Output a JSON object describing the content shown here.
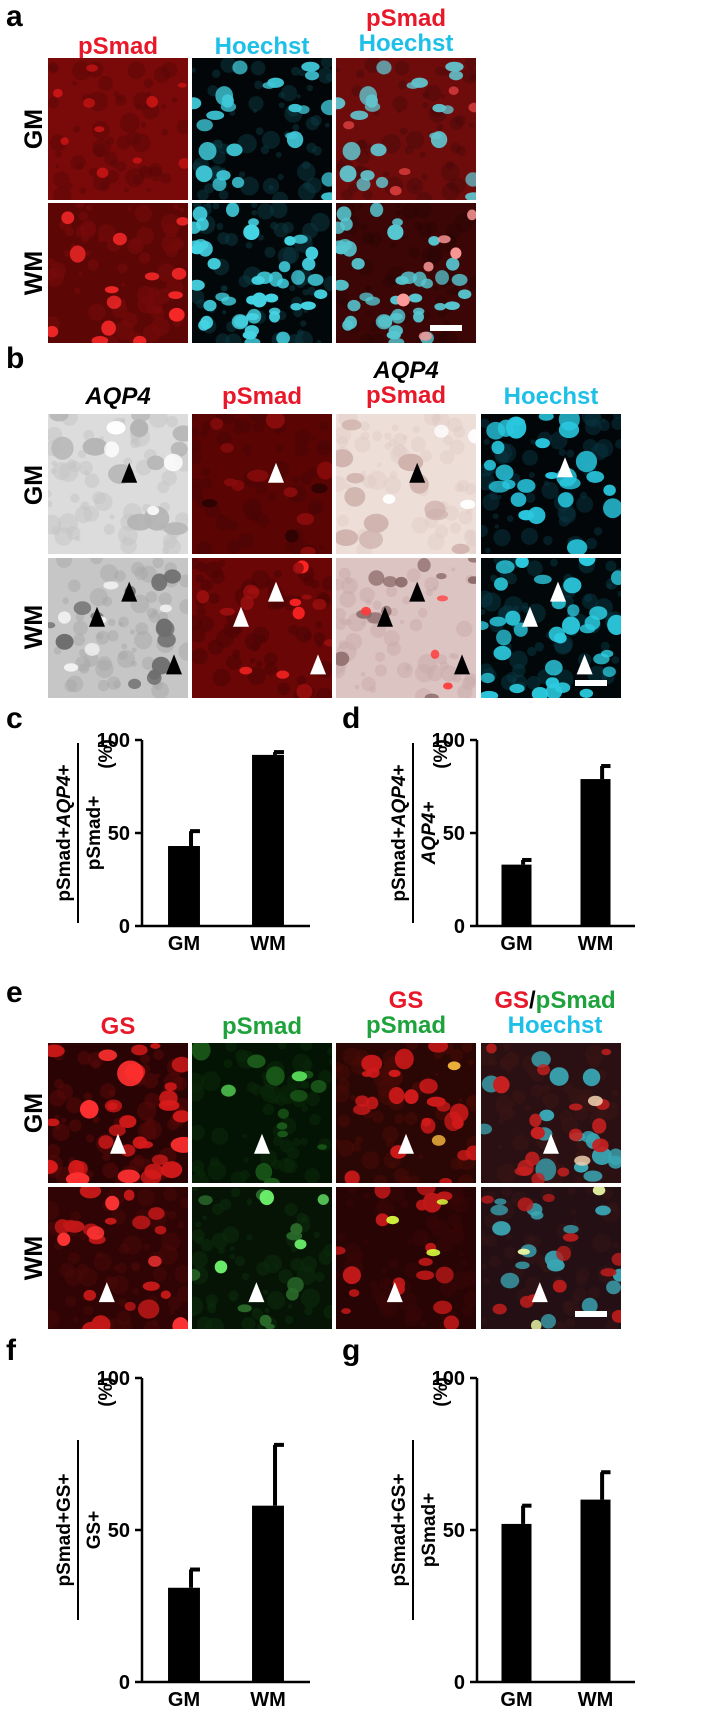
{
  "panel_a": {
    "letter": "a",
    "columns": [
      "pSmad",
      "Hoechst",
      "pSmad",
      "Hoechst"
    ],
    "rows": [
      "GM",
      "WM"
    ]
  },
  "panel_b": {
    "letter": "b",
    "col1": "AQP4",
    "col2": "pSmad",
    "col3_top": "AQP4",
    "col3_bottom": "pSmad",
    "col4": "Hoechst",
    "rows": [
      "GM",
      "WM"
    ]
  },
  "panel_e": {
    "letter": "e",
    "col1": "GS",
    "col2": "pSmad",
    "col3_top": "GS",
    "col3_bottom": "pSmad",
    "col4_top_gs": "GS",
    "col4_top_slash": "/",
    "col4_top_psmad": "pSmad",
    "col4_bottom": "Hoechst",
    "rows": [
      "GM",
      "WM"
    ]
  },
  "charts": {
    "c": {
      "letter": "c",
      "num_prefix": "pSmad+",
      "num_italic": "AQP4",
      "num_suffix": "+",
      "denominator": "pSmad+",
      "unit": "(%)"
    },
    "d": {
      "letter": "d",
      "num_prefix": "pSmad+",
      "num_italic": "AQP4",
      "num_suffix": "+",
      "denominator": "AQP4+",
      "unit": "(%)"
    },
    "f": {
      "letter": "f",
      "num_prefix": "pSmad+GS+",
      "num_italic": "",
      "num_suffix": "",
      "denominator": "GS+",
      "unit": "(%)"
    },
    "g": {
      "letter": "g",
      "num_prefix": "pSmad+GS+",
      "num_italic": "",
      "num_suffix": "",
      "denominator": "pSmad+",
      "unit": "(%)"
    }
  },
  "chart_data": [
    {
      "id": "c",
      "type": "bar",
      "categories": [
        "GM",
        "WM"
      ],
      "values": [
        43,
        92
      ],
      "errors": [
        8,
        1.5
      ],
      "ylim": [
        0,
        100
      ],
      "yticks": [
        0,
        50,
        100
      ],
      "ylabel": "pSmad+AQP4+ / pSmad+ (%)"
    },
    {
      "id": "d",
      "type": "bar",
      "categories": [
        "GM",
        "WM"
      ],
      "values": [
        33,
        79
      ],
      "errors": [
        2.5,
        7
      ],
      "ylim": [
        0,
        100
      ],
      "yticks": [
        0,
        50,
        100
      ],
      "ylabel": "pSmad+AQP4+ / AQP4+ (%)"
    },
    {
      "id": "f",
      "type": "bar",
      "categories": [
        "GM",
        "WM"
      ],
      "values": [
        31,
        58
      ],
      "errors": [
        6,
        20
      ],
      "ylim": [
        0,
        100
      ],
      "yticks": [
        0,
        50,
        100
      ],
      "ylabel": "pSmad+GS+ / GS+ (%)"
    },
    {
      "id": "g",
      "type": "bar",
      "categories": [
        "GM",
        "WM"
      ],
      "values": [
        52,
        60
      ],
      "errors": [
        6,
        9
      ],
      "ylim": [
        0,
        100
      ],
      "yticks": [
        0,
        50,
        100
      ],
      "ylabel": "pSmad+GS+ / pSmad+ (%)"
    }
  ],
  "colors": {
    "red": "#e8182a",
    "cyan": "#1fc0e8",
    "green": "#1ea33c",
    "bar": "#000000"
  }
}
